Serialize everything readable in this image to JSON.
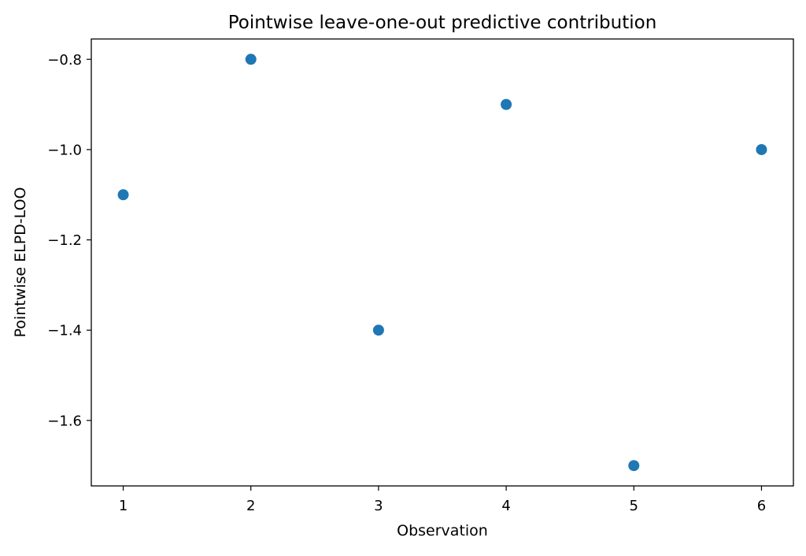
{
  "chart_data": {
    "type": "scatter",
    "title": "Pointwise leave-one-out predictive contribution",
    "xlabel": "Observation",
    "ylabel": "Pointwise ELPD-LOO",
    "x": [
      1,
      2,
      3,
      4,
      5,
      6
    ],
    "y": [
      -1.1,
      -0.8,
      -1.4,
      -0.9,
      -1.7,
      -1.0
    ],
    "xlim": [
      0.75,
      6.25
    ],
    "ylim": [
      -1.745,
      -0.755
    ],
    "xticks": [
      1,
      2,
      3,
      4,
      5,
      6
    ],
    "xtick_labels": [
      "1",
      "2",
      "3",
      "4",
      "5",
      "6"
    ],
    "yticks": [
      -0.8,
      -1.0,
      -1.2,
      -1.4,
      -1.6
    ],
    "ytick_labels": [
      "−0.8",
      "−1.0",
      "−1.2",
      "−1.4",
      "−1.6"
    ],
    "marker_color": "#1f77b4",
    "grid": false,
    "legend": "none"
  }
}
